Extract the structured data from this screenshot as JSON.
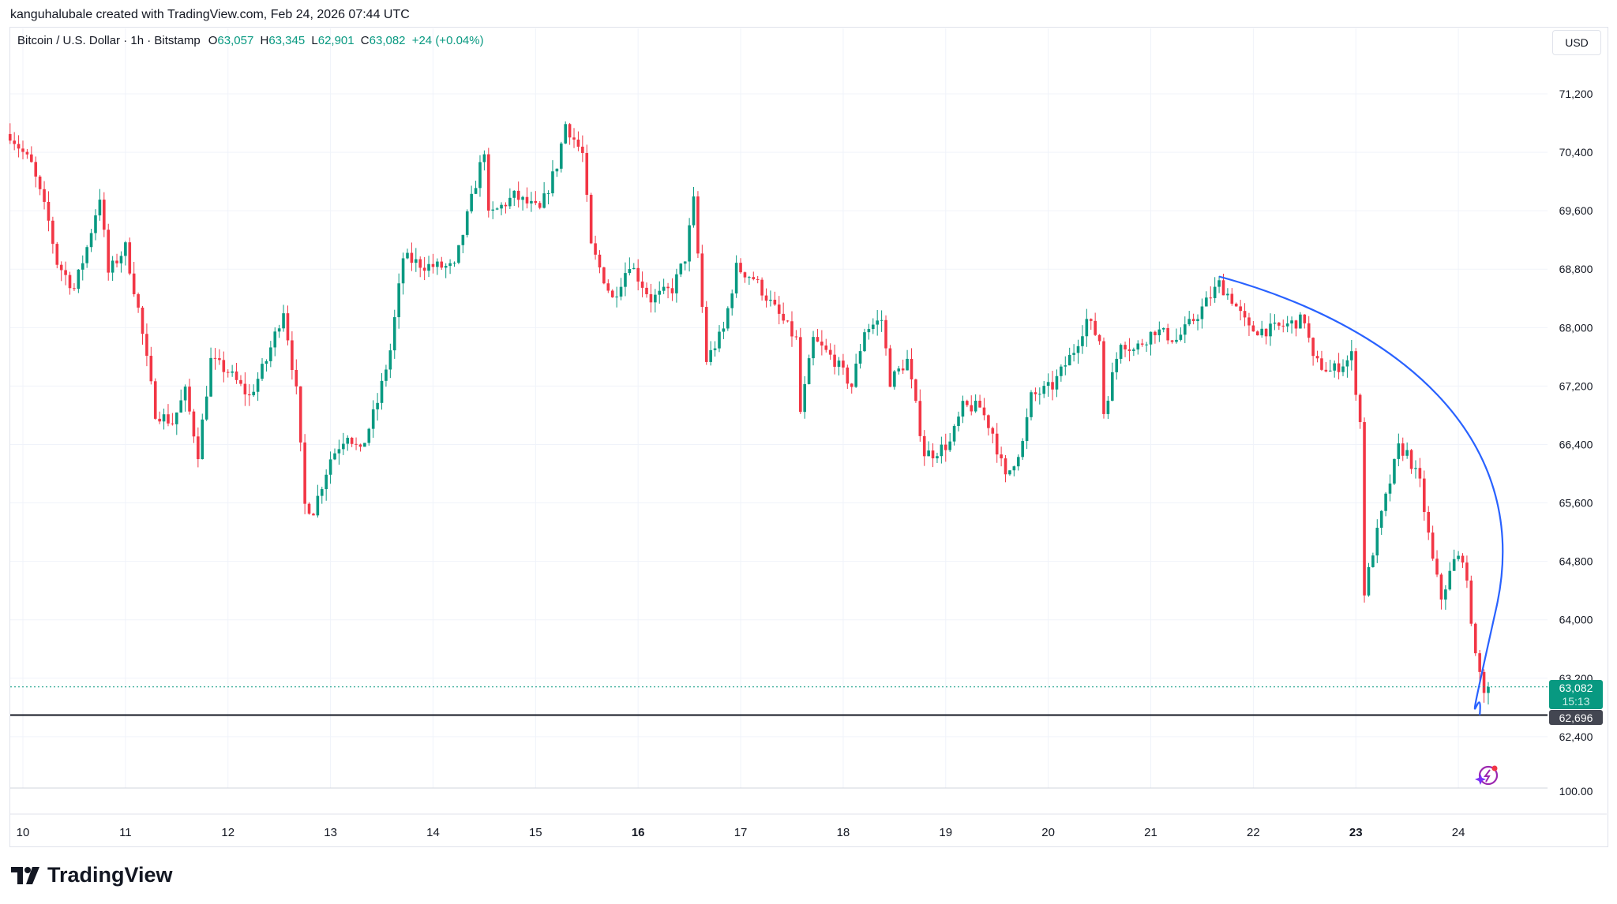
{
  "attribution": "kanguhalubale created with TradingView.com, Feb 24, 2026 07:44 UTC",
  "legend": {
    "symbol": "Bitcoin / U.S. Dollar · 1h · Bitstamp",
    "open_label": "O",
    "open": "63,057",
    "high_label": "H",
    "high": "63,345",
    "low_label": "L",
    "low": "62,901",
    "close_label": "C",
    "close": "63,082",
    "change": "+24 (+0.04%)"
  },
  "currency_button": "USD",
  "current_price": {
    "value": "63,082",
    "countdown": "15:13",
    "color": "#089981"
  },
  "horizontal_line": {
    "value": "62,696",
    "price": 62696,
    "color": "#131722"
  },
  "bottom_pane_label": "100.00",
  "brand": "TradingView",
  "colors": {
    "up": "#089981",
    "down": "#f23645",
    "curve": "#2962ff"
  },
  "chart_data": {
    "type": "candlestick",
    "interval": "1h",
    "title": "Bitcoin / U.S. Dollar · 1h · Bitstamp",
    "ylim": [
      61900,
      71900
    ],
    "y_ticks": [
      "71,200",
      "70,400",
      "69,600",
      "68,800",
      "68,000",
      "67,200",
      "66,400",
      "65,600",
      "64,800",
      "64,000",
      "63,200",
      "62,400"
    ],
    "x_ticks": [
      {
        "label": "10",
        "bold": false
      },
      {
        "label": "11",
        "bold": false
      },
      {
        "label": "12",
        "bold": false
      },
      {
        "label": "13",
        "bold": false
      },
      {
        "label": "14",
        "bold": false
      },
      {
        "label": "15",
        "bold": false
      },
      {
        "label": "16",
        "bold": true
      },
      {
        "label": "17",
        "bold": false
      },
      {
        "label": "18",
        "bold": false
      },
      {
        "label": "19",
        "bold": false
      },
      {
        "label": "20",
        "bold": false
      },
      {
        "label": "21",
        "bold": false
      },
      {
        "label": "22",
        "bold": false
      },
      {
        "label": "23",
        "bold": true
      },
      {
        "label": "24",
        "bold": false
      }
    ],
    "approx_close_path": [
      [
        "2026-02-09T21:00",
        70650
      ],
      [
        "2026-02-10T02:00",
        70230
      ],
      [
        "2026-02-10T06:00",
        69450
      ],
      [
        "2026-02-10T08:00",
        68890
      ],
      [
        "2026-02-10T12:00",
        68530
      ],
      [
        "2026-02-10T15:00",
        69100
      ],
      [
        "2026-02-10T18:00",
        69800
      ],
      [
        "2026-02-10T20:00",
        68750
      ],
      [
        "2026-02-11T00:00",
        69100
      ],
      [
        "2026-02-11T03:00",
        68250
      ],
      [
        "2026-02-11T07:00",
        66840
      ],
      [
        "2026-02-11T11:00",
        66700
      ],
      [
        "2026-02-11T14:00",
        67120
      ],
      [
        "2026-02-11T17:00",
        66280
      ],
      [
        "2026-02-11T20:00",
        67550
      ],
      [
        "2026-02-12T00:00",
        67400
      ],
      [
        "2026-02-12T05:00",
        67050
      ],
      [
        "2026-02-12T09:00",
        67550
      ],
      [
        "2026-02-12T13:00",
        68250
      ],
      [
        "2026-02-12T16:00",
        67120
      ],
      [
        "2026-02-12T18:00",
        65570
      ],
      [
        "2026-02-12T20:00",
        65500
      ],
      [
        "2026-02-13T00:00",
        66210
      ],
      [
        "2026-02-13T04:00",
        66560
      ],
      [
        "2026-02-13T07:00",
        66280
      ],
      [
        "2026-02-13T11:00",
        66980
      ],
      [
        "2026-02-13T14:00",
        67690
      ],
      [
        "2026-02-13T17:00",
        68960
      ],
      [
        "2026-02-13T22:00",
        68850
      ],
      [
        "2026-02-14T05:00",
        68820
      ],
      [
        "2026-02-14T08:00",
        69520
      ],
      [
        "2026-02-14T12:00",
        70440
      ],
      [
        "2026-02-14T13:00",
        69520
      ],
      [
        "2026-02-14T19:00",
        69800
      ],
      [
        "2026-02-15T01:00",
        69600
      ],
      [
        "2026-02-15T05:00",
        70230
      ],
      [
        "2026-02-15T07:00",
        70790
      ],
      [
        "2026-02-15T11:00",
        70370
      ],
      [
        "2026-02-15T13:00",
        69100
      ],
      [
        "2026-02-15T18:00",
        68390
      ],
      [
        "2026-02-15T22:00",
        68890
      ],
      [
        "2026-02-16T03:00",
        68390
      ],
      [
        "2026-02-16T08:00",
        68530
      ],
      [
        "2026-02-16T11:00",
        68960
      ],
      [
        "2026-02-16T13:00",
        69730
      ],
      [
        "2026-02-16T16:00",
        67550
      ],
      [
        "2026-02-16T20:00",
        67970
      ],
      [
        "2026-02-16T23:00",
        68820
      ],
      [
        "2026-02-17T03:00",
        68680
      ],
      [
        "2026-02-17T08:00",
        68250
      ],
      [
        "2026-02-17T13:00",
        67830
      ],
      [
        "2026-02-17T14:00",
        66840
      ],
      [
        "2026-02-17T17:00",
        67830
      ],
      [
        "2026-02-17T22:00",
        67550
      ],
      [
        "2026-02-18T02:00",
        67200
      ],
      [
        "2026-02-18T05:00",
        67970
      ],
      [
        "2026-02-18T09:00",
        68110
      ],
      [
        "2026-02-18T11:00",
        67270
      ],
      [
        "2026-02-18T15:00",
        67550
      ],
      [
        "2026-02-18T19:00",
        66280
      ],
      [
        "2026-02-18T21:00",
        66280
      ],
      [
        "2026-02-19T01:00",
        66420
      ],
      [
        "2026-02-19T04:00",
        66910
      ],
      [
        "2026-02-19T08:00",
        66910
      ],
      [
        "2026-02-19T11:00",
        66560
      ],
      [
        "2026-02-19T14:00",
        65930
      ],
      [
        "2026-02-19T18:00",
        66420
      ],
      [
        "2026-02-19T20:00",
        67050
      ],
      [
        "2026-02-20T01:00",
        67200
      ],
      [
        "2026-02-20T06:00",
        67690
      ],
      [
        "2026-02-20T09:00",
        68110
      ],
      [
        "2026-02-20T12:00",
        67830
      ],
      [
        "2026-02-20T13:00",
        66840
      ],
      [
        "2026-02-20T17:00",
        67830
      ],
      [
        "2026-02-20T20:00",
        67690
      ],
      [
        "2026-02-21T01:00",
        67970
      ],
      [
        "2026-02-21T06:00",
        67830
      ],
      [
        "2026-02-21T11:00",
        68180
      ],
      [
        "2026-02-21T16:00",
        68600
      ],
      [
        "2026-02-21T19:00",
        68390
      ],
      [
        "2026-02-21T23:00",
        67970
      ],
      [
        "2026-02-22T04:00",
        67970
      ],
      [
        "2026-02-22T08:00",
        68040
      ],
      [
        "2026-02-22T12:00",
        68110
      ],
      [
        "2026-02-22T14:00",
        67550
      ],
      [
        "2026-02-22T18:00",
        67400
      ],
      [
        "2026-02-22T22:00",
        67550
      ],
      [
        "2026-02-22T23:00",
        67620
      ],
      [
        "2026-02-23T01:00",
        66700
      ],
      [
        "2026-02-23T02:00",
        64380
      ],
      [
        "2026-02-23T04:00",
        64940
      ],
      [
        "2026-02-23T06:00",
        65430
      ],
      [
        "2026-02-23T10:00",
        66350
      ],
      [
        "2026-02-23T12:00",
        66280
      ],
      [
        "2026-02-23T15:00",
        65860
      ],
      [
        "2026-02-23T18:00",
        64800
      ],
      [
        "2026-02-23T20:00",
        64300
      ],
      [
        "2026-02-23T23:00",
        64800
      ],
      [
        "2026-02-24T01:00",
        64870
      ],
      [
        "2026-02-24T03:00",
        64030
      ],
      [
        "2026-02-24T04:00",
        63460
      ],
      [
        "2026-02-24T06:00",
        63060
      ],
      [
        "2026-02-24T07:00",
        63082
      ]
    ],
    "drawing_arc": {
      "start": [
        "2026-02-21T16:00",
        68700
      ],
      "end": [
        "2026-02-24T05:00",
        62696
      ]
    }
  }
}
